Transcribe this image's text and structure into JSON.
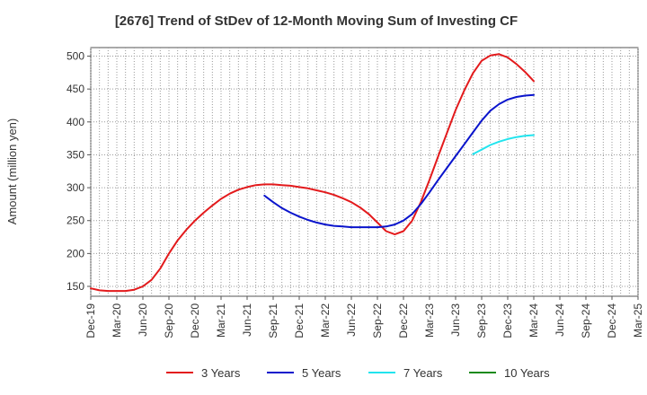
{
  "chart_data": {
    "type": "line",
    "title": "[2676]  Trend of StDev of 12-Month Moving Sum of Investing CF",
    "ylabel": "Amount (million yen)",
    "xlabel": "",
    "ylim": [
      135,
      513
    ],
    "yticks": [
      150,
      200,
      250,
      300,
      350,
      400,
      450,
      500
    ],
    "x_tick_labels": [
      "Dec-19",
      "Mar-20",
      "Jun-20",
      "Sep-20",
      "Dec-20",
      "Mar-21",
      "Jun-21",
      "Sep-21",
      "Dec-21",
      "Mar-22",
      "Jun-22",
      "Sep-22",
      "Dec-22",
      "Mar-23",
      "Jun-23",
      "Sep-23",
      "Dec-23",
      "Mar-24",
      "Jun-24",
      "Sep-24",
      "Dec-24",
      "Mar-25"
    ],
    "grid": true,
    "legend_position": "bottom",
    "series": [
      {
        "name": "3 Years",
        "color": "#e31a1c",
        "start_month": "Dec-19",
        "values": [
          147,
          144,
          143,
          143,
          143,
          145,
          150,
          160,
          177,
          200,
          220,
          236,
          250,
          262,
          273,
          283,
          291,
          297,
          301,
          304,
          305,
          305,
          304,
          303,
          301,
          299,
          296,
          293,
          289,
          284,
          278,
          270,
          260,
          247,
          234,
          229,
          234,
          250,
          278,
          312,
          348,
          383,
          418,
          448,
          474,
          493,
          501,
          503,
          498,
          488,
          476,
          462
        ]
      },
      {
        "name": "5 Years",
        "color": "#0a14cc",
        "start_month": "Aug-21",
        "values": [
          288,
          278,
          269,
          262,
          256,
          251,
          247,
          244,
          242,
          241,
          240,
          240,
          240,
          240,
          241,
          244,
          250,
          260,
          275,
          293,
          312,
          330,
          348,
          366,
          384,
          402,
          417,
          427,
          434,
          438,
          440,
          441
        ]
      },
      {
        "name": "7 Years",
        "color": "#22e4ee",
        "start_month": "Aug-23",
        "values": [
          351,
          358,
          365,
          370,
          374,
          377,
          379,
          380
        ]
      },
      {
        "name": "10 Years",
        "color": "#1a8a1a",
        "start_month": "Dec-19",
        "values": []
      }
    ]
  }
}
